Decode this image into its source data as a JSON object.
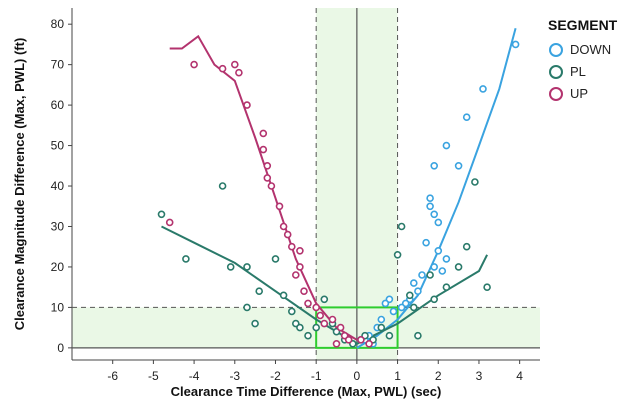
{
  "chart_data": {
    "type": "scatter",
    "xlabel": "Clearance Time Difference (Max, PWL) (sec)",
    "ylabel": "Clearance Magnitude Difference (Max, PWL) (ft)",
    "xlim": [
      -7,
      4.5
    ],
    "ylim": [
      -3,
      84
    ],
    "xticks": [
      "-6",
      "-5",
      "-4",
      "-3",
      "-2",
      "-1",
      "0",
      "1",
      "2",
      "3",
      "4"
    ],
    "yticks": [
      "0",
      "10",
      "20",
      "30",
      "40",
      "50",
      "60",
      "70",
      "80"
    ],
    "legend": {
      "title": "SEGMENT",
      "placement": "top-right"
    },
    "reference_lines": {
      "vertical_dashed": [
        -1,
        1
      ],
      "vertical_solid": [
        0
      ],
      "horizontal_dashed": [
        10
      ],
      "horizontal_solid": [
        0
      ]
    },
    "shaded_bands": {
      "x_range": [
        -1,
        1
      ],
      "y_range": [
        0,
        10
      ]
    },
    "highlight_box": {
      "x": [
        -1,
        1
      ],
      "y": [
        0,
        10
      ],
      "color": "#2ecc2e"
    },
    "series": [
      {
        "name": "DOWN",
        "color": "#3aa3e0",
        "points": [
          [
            3.9,
            75
          ],
          [
            3.1,
            64
          ],
          [
            2.7,
            57
          ],
          [
            2.2,
            50
          ],
          [
            1.9,
            45
          ],
          [
            2.5,
            45
          ],
          [
            1.8,
            37
          ],
          [
            1.8,
            35
          ],
          [
            1.9,
            33
          ],
          [
            2.0,
            31
          ],
          [
            1.7,
            26
          ],
          [
            2.0,
            24
          ],
          [
            2.2,
            22
          ],
          [
            1.9,
            20
          ],
          [
            2.1,
            19
          ],
          [
            1.6,
            18
          ],
          [
            1.4,
            16
          ],
          [
            1.5,
            14
          ],
          [
            1.3,
            12
          ],
          [
            1.2,
            11
          ],
          [
            1.1,
            10
          ],
          [
            0.9,
            9
          ],
          [
            0.8,
            12
          ],
          [
            0.7,
            11
          ],
          [
            0.6,
            7
          ],
          [
            0.5,
            5
          ],
          [
            0.3,
            3
          ],
          [
            0.2,
            2
          ],
          [
            0.4,
            1
          ],
          [
            0.1,
            2
          ]
        ],
        "fit": [
          [
            0,
            0
          ],
          [
            0.5,
            3
          ],
          [
            1.0,
            7
          ],
          [
            1.5,
            13
          ],
          [
            2.0,
            24
          ],
          [
            2.5,
            36
          ],
          [
            3.0,
            50
          ],
          [
            3.5,
            64
          ],
          [
            3.9,
            79
          ]
        ]
      },
      {
        "name": "PL",
        "color": "#2a7a6a",
        "points": [
          [
            -4.8,
            33
          ],
          [
            -3.3,
            40
          ],
          [
            -4.2,
            22
          ],
          [
            -3.1,
            20
          ],
          [
            -2.7,
            20
          ],
          [
            -2.4,
            14
          ],
          [
            -2.7,
            10
          ],
          [
            -2.5,
            6
          ],
          [
            -2.0,
            22
          ],
          [
            -1.8,
            13
          ],
          [
            -1.6,
            9
          ],
          [
            -1.5,
            6
          ],
          [
            -1.4,
            5
          ],
          [
            -1.2,
            3
          ],
          [
            -1.0,
            5
          ],
          [
            -0.8,
            12
          ],
          [
            -0.6,
            6
          ],
          [
            -0.5,
            4
          ],
          [
            -0.3,
            2
          ],
          [
            -0.1,
            1
          ],
          [
            0.2,
            3
          ],
          [
            0.4,
            2
          ],
          [
            0.6,
            5
          ],
          [
            0.8,
            3
          ],
          [
            1.0,
            23
          ],
          [
            1.1,
            30
          ],
          [
            1.3,
            13
          ],
          [
            1.4,
            10
          ],
          [
            1.5,
            3
          ],
          [
            1.9,
            12
          ],
          [
            2.2,
            15
          ],
          [
            2.5,
            20
          ],
          [
            2.7,
            25
          ],
          [
            2.9,
            41
          ],
          [
            3.2,
            15
          ],
          [
            1.8,
            18
          ]
        ],
        "fit": [
          [
            -4.8,
            30
          ],
          [
            -4.0,
            26
          ],
          [
            -3.0,
            21
          ],
          [
            -2.0,
            14
          ],
          [
            -1.0,
            7
          ],
          [
            0,
            1
          ],
          [
            1.0,
            6
          ],
          [
            2.0,
            13
          ],
          [
            3.0,
            19
          ],
          [
            3.2,
            23
          ]
        ]
      },
      {
        "name": "UP",
        "color": "#b3336e",
        "points": [
          [
            -4.6,
            31
          ],
          [
            -4.0,
            70
          ],
          [
            -3.3,
            69
          ],
          [
            -3.0,
            70
          ],
          [
            -2.9,
            68
          ],
          [
            -2.7,
            60
          ],
          [
            -2.3,
            53
          ],
          [
            -2.3,
            49
          ],
          [
            -2.2,
            45
          ],
          [
            -2.2,
            42
          ],
          [
            -2.1,
            40
          ],
          [
            -1.9,
            35
          ],
          [
            -1.8,
            30
          ],
          [
            -1.7,
            28
          ],
          [
            -1.6,
            25
          ],
          [
            -1.4,
            24
          ],
          [
            -1.4,
            20
          ],
          [
            -1.5,
            18
          ],
          [
            -1.3,
            14
          ],
          [
            -1.2,
            11
          ],
          [
            -1.0,
            10
          ],
          [
            -0.9,
            8
          ],
          [
            -0.8,
            6
          ],
          [
            -0.6,
            7
          ],
          [
            -0.4,
            5
          ],
          [
            -0.3,
            3
          ],
          [
            -0.2,
            2
          ],
          [
            -0.5,
            1
          ],
          [
            0.1,
            2
          ],
          [
            0.3,
            1
          ]
        ],
        "fit": [
          [
            -4.6,
            74
          ],
          [
            -4.3,
            74
          ],
          [
            -3.9,
            77
          ],
          [
            -3.5,
            70
          ],
          [
            -3.0,
            66
          ],
          [
            -2.5,
            52
          ],
          [
            -2.0,
            37
          ],
          [
            -1.5,
            22
          ],
          [
            -1.0,
            11
          ],
          [
            -0.5,
            5
          ],
          [
            0,
            2
          ],
          [
            0.3,
            1
          ]
        ]
      }
    ]
  }
}
